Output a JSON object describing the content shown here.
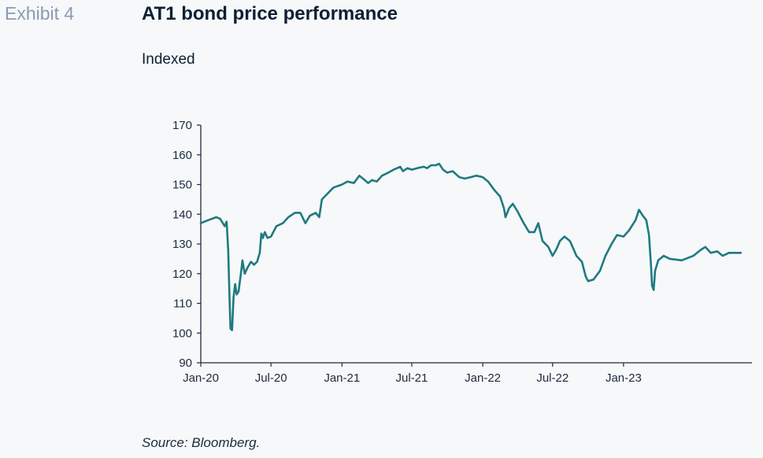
{
  "header": {
    "exhibit_label": "Exhibit 4",
    "title": "AT1 bond price performance",
    "subtitle": "Indexed"
  },
  "footer": {
    "source": "Source: Bloomberg."
  },
  "colors": {
    "line": "#1f7a80",
    "axis": "#1c2b3d",
    "title": "#0d1f33",
    "exhibit": "#8a9bb0",
    "background": "#f6f8fa"
  },
  "chart_data": {
    "type": "line",
    "title": "AT1 bond price performance",
    "subtitle": "Indexed",
    "xlabel": "",
    "ylabel": "",
    "ylim": [
      90,
      170
    ],
    "yticks": [
      90,
      100,
      110,
      120,
      130,
      140,
      150,
      160,
      170
    ],
    "xlim": [
      "2020-01-01",
      "2023-11-30"
    ],
    "xticks": [
      {
        "date": "2020-01-01",
        "label": "Jan-20"
      },
      {
        "date": "2020-07-01",
        "label": "Jul-20"
      },
      {
        "date": "2021-01-01",
        "label": "Jan-21"
      },
      {
        "date": "2021-07-01",
        "label": "Jul-21"
      },
      {
        "date": "2022-01-01",
        "label": "Jan-22"
      },
      {
        "date": "2022-07-01",
        "label": "Jul-22"
      },
      {
        "date": "2023-01-01",
        "label": "Jan-23"
      }
    ],
    "grid": false,
    "legend": "none",
    "series": [
      {
        "points": [
          [
            "2020-01-01",
            137
          ],
          [
            "2020-01-20",
            138
          ],
          [
            "2020-02-10",
            139
          ],
          [
            "2020-02-20",
            138.5
          ],
          [
            "2020-03-03",
            136
          ],
          [
            "2020-03-08",
            137.5
          ],
          [
            "2020-03-12",
            128
          ],
          [
            "2020-03-16",
            110
          ],
          [
            "2020-03-18",
            101.5
          ],
          [
            "2020-03-22",
            101
          ],
          [
            "2020-03-26",
            112
          ],
          [
            "2020-03-30",
            116.5
          ],
          [
            "2020-04-03",
            113
          ],
          [
            "2020-04-08",
            114
          ],
          [
            "2020-04-15",
            121
          ],
          [
            "2020-04-18",
            124.5
          ],
          [
            "2020-04-24",
            120
          ],
          [
            "2020-05-01",
            122
          ],
          [
            "2020-05-10",
            124
          ],
          [
            "2020-05-18",
            123
          ],
          [
            "2020-05-26",
            124
          ],
          [
            "2020-06-02",
            127
          ],
          [
            "2020-06-06",
            133.5
          ],
          [
            "2020-06-10",
            132
          ],
          [
            "2020-06-15",
            134
          ],
          [
            "2020-06-22",
            132
          ],
          [
            "2020-07-01",
            132.5
          ],
          [
            "2020-07-15",
            136
          ],
          [
            "2020-08-01",
            137
          ],
          [
            "2020-08-15",
            139
          ],
          [
            "2020-09-01",
            140.5
          ],
          [
            "2020-09-15",
            140.5
          ],
          [
            "2020-09-28",
            137
          ],
          [
            "2020-10-10",
            139.5
          ],
          [
            "2020-10-25",
            140.5
          ],
          [
            "2020-11-03",
            139
          ],
          [
            "2020-11-10",
            145
          ],
          [
            "2020-11-25",
            147
          ],
          [
            "2020-12-10",
            149
          ],
          [
            "2021-01-01",
            150
          ],
          [
            "2021-01-15",
            151
          ],
          [
            "2021-02-01",
            150.5
          ],
          [
            "2021-02-15",
            153
          ],
          [
            "2021-03-01",
            151.5
          ],
          [
            "2021-03-10",
            150.5
          ],
          [
            "2021-03-20",
            151.5
          ],
          [
            "2021-04-01",
            151
          ],
          [
            "2021-04-15",
            153
          ],
          [
            "2021-05-01",
            154
          ],
          [
            "2021-05-15",
            155
          ],
          [
            "2021-06-01",
            156
          ],
          [
            "2021-06-08",
            154.5
          ],
          [
            "2021-06-20",
            155.5
          ],
          [
            "2021-07-01",
            155
          ],
          [
            "2021-07-15",
            155.5
          ],
          [
            "2021-08-01",
            156
          ],
          [
            "2021-08-10",
            155.5
          ],
          [
            "2021-08-20",
            156.5
          ],
          [
            "2021-09-01",
            156.5
          ],
          [
            "2021-09-10",
            157
          ],
          [
            "2021-09-20",
            155
          ],
          [
            "2021-10-01",
            154
          ],
          [
            "2021-10-15",
            154.5
          ],
          [
            "2021-11-01",
            152.5
          ],
          [
            "2021-11-15",
            152
          ],
          [
            "2021-12-01",
            152.5
          ],
          [
            "2021-12-15",
            153
          ],
          [
            "2022-01-01",
            152.5
          ],
          [
            "2022-01-15",
            151
          ],
          [
            "2022-02-01",
            148
          ],
          [
            "2022-02-15",
            146
          ],
          [
            "2022-02-25",
            142
          ],
          [
            "2022-03-01",
            139
          ],
          [
            "2022-03-10",
            142
          ],
          [
            "2022-03-20",
            143.5
          ],
          [
            "2022-04-01",
            141
          ],
          [
            "2022-04-15",
            137.5
          ],
          [
            "2022-05-01",
            134
          ],
          [
            "2022-05-15",
            134
          ],
          [
            "2022-05-25",
            137
          ],
          [
            "2022-06-05",
            131
          ],
          [
            "2022-06-20",
            129
          ],
          [
            "2022-07-01",
            126
          ],
          [
            "2022-07-10",
            128
          ],
          [
            "2022-07-20",
            131
          ],
          [
            "2022-08-01",
            132.5
          ],
          [
            "2022-08-15",
            131
          ],
          [
            "2022-09-01",
            126
          ],
          [
            "2022-09-15",
            124
          ],
          [
            "2022-09-25",
            119
          ],
          [
            "2022-10-01",
            117.5
          ],
          [
            "2022-10-15",
            118
          ],
          [
            "2022-11-01",
            121
          ],
          [
            "2022-11-15",
            126
          ],
          [
            "2022-12-01",
            130
          ],
          [
            "2022-12-15",
            133
          ],
          [
            "2023-01-01",
            132.5
          ],
          [
            "2023-01-15",
            134.5
          ],
          [
            "2023-02-01",
            138
          ],
          [
            "2023-02-10",
            141.5
          ],
          [
            "2023-02-20",
            139.5
          ],
          [
            "2023-03-01",
            138
          ],
          [
            "2023-03-08",
            133
          ],
          [
            "2023-03-13",
            123
          ],
          [
            "2023-03-16",
            116
          ],
          [
            "2023-03-20",
            114.5
          ],
          [
            "2023-03-24",
            121
          ],
          [
            "2023-04-01",
            124.5
          ],
          [
            "2023-04-15",
            126
          ],
          [
            "2023-05-01",
            125
          ],
          [
            "2023-06-01",
            124.5
          ],
          [
            "2023-07-01",
            126
          ],
          [
            "2023-07-20",
            128
          ],
          [
            "2023-08-01",
            129
          ],
          [
            "2023-08-15",
            127
          ],
          [
            "2023-09-01",
            127.5
          ],
          [
            "2023-09-15",
            126
          ],
          [
            "2023-10-01",
            127
          ],
          [
            "2023-11-01",
            127
          ]
        ]
      }
    ]
  }
}
